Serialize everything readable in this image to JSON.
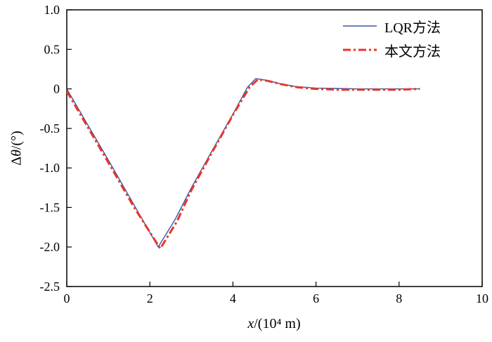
{
  "figure": {
    "background": "#ffffff",
    "axis_color": "#000000"
  },
  "chart_data": {
    "type": "line",
    "title": "",
    "xlabel": "x/(10⁴ m)",
    "xlabel_var": "x",
    "xlabel_rest": "/(10⁴ m)",
    "ylabel": "Δθ/(°)",
    "ylabel_prefix": "Δ",
    "ylabel_var": "θ",
    "ylabel_rest": "/(°)",
    "xlim": [
      0,
      10
    ],
    "ylim": [
      -2.5,
      1.0
    ],
    "xticks": [
      0,
      2,
      4,
      6,
      8,
      10
    ],
    "xtick_labels": [
      "0",
      "2",
      "4",
      "6",
      "8",
      "10"
    ],
    "yticks": [
      -2.5,
      -2.0,
      -1.5,
      -1.0,
      -0.5,
      0,
      0.5,
      1.0
    ],
    "ytick_labels": [
      "-2.5",
      "-2.0",
      "-1.5",
      "-1.0",
      "-0.5",
      "0",
      "0.5",
      "1.0"
    ],
    "grid": false,
    "legend_position": "top-right",
    "series": [
      {
        "name": "LQR方法",
        "color": "#3a57a0",
        "style": "solid",
        "line_width": 1.4,
        "points": [
          [
            0,
            0
          ],
          [
            0.3,
            -0.27
          ],
          [
            1.0,
            -0.9
          ],
          [
            1.6,
            -1.45
          ],
          [
            2.2,
            -2.0
          ],
          [
            2.6,
            -1.66
          ],
          [
            3.0,
            -1.25
          ],
          [
            3.5,
            -0.78
          ],
          [
            4.0,
            -0.32
          ],
          [
            4.35,
            0.02
          ],
          [
            4.55,
            0.13
          ],
          [
            4.8,
            0.11
          ],
          [
            5.1,
            0.07
          ],
          [
            5.5,
            0.03
          ],
          [
            6.0,
            0.01
          ],
          [
            6.5,
            0.005
          ],
          [
            7.0,
            0.0
          ],
          [
            7.5,
            0.0
          ],
          [
            8.0,
            0.0
          ],
          [
            8.5,
            0.0
          ]
        ]
      },
      {
        "name": "本文方法",
        "color": "#ea3427",
        "style": "dash-dot",
        "line_width": 3,
        "points": [
          [
            0,
            -0.03
          ],
          [
            0.3,
            -0.3
          ],
          [
            1.0,
            -0.93
          ],
          [
            1.6,
            -1.48
          ],
          [
            2.25,
            -2.02
          ],
          [
            2.65,
            -1.68
          ],
          [
            3.0,
            -1.28
          ],
          [
            3.5,
            -0.8
          ],
          [
            4.0,
            -0.33
          ],
          [
            4.4,
            0.02
          ],
          [
            4.6,
            0.12
          ],
          [
            4.85,
            0.1
          ],
          [
            5.15,
            0.06
          ],
          [
            5.55,
            0.02
          ],
          [
            6.0,
            0.0
          ],
          [
            6.5,
            -0.01
          ],
          [
            7.0,
            -0.01
          ],
          [
            7.5,
            -0.01
          ],
          [
            8.0,
            -0.01
          ],
          [
            8.5,
            0.0
          ]
        ]
      }
    ]
  }
}
